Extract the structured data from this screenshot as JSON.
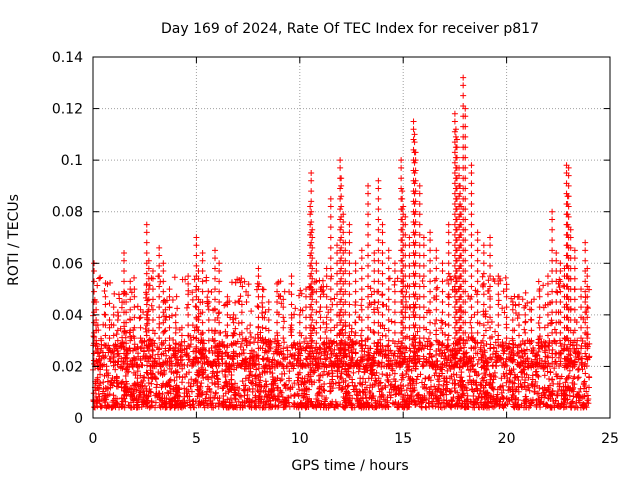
{
  "chart_data": {
    "type": "scatter",
    "title": "Day 169 of 2024, Rate Of TEC Index for receiver p817",
    "xlabel": "GPS time / hours",
    "ylabel": "ROTI / TECUs",
    "xlim": [
      0,
      25
    ],
    "ylim": [
      0,
      0.14
    ],
    "xticks": [
      0,
      5,
      10,
      15,
      20,
      25
    ],
    "xtick_labels": [
      "0",
      "5",
      "10",
      "15",
      "20",
      "25"
    ],
    "yticks": [
      0,
      0.02,
      0.04,
      0.06,
      0.08,
      0.1,
      0.12,
      0.14
    ],
    "ytick_labels": [
      "0",
      "0.02",
      "0.04",
      "0.06",
      "0.08",
      "0.1",
      "0.12",
      "0.14"
    ],
    "grid": true,
    "marker": "+",
    "color": "#ff0000",
    "series": [
      {
        "name": "ROTI",
        "x": [
          0.05,
          0.15,
          0.25,
          0.4,
          0.6,
          0.8,
          1.0,
          1.2,
          1.5,
          1.6,
          1.8,
          2.0,
          2.3,
          2.6,
          2.7,
          2.9,
          3.2,
          3.4,
          3.5,
          3.7,
          4.0,
          4.3,
          4.6,
          5.0,
          5.1,
          5.3,
          5.6,
          5.9,
          6.1,
          6.5,
          6.8,
          7.2,
          7.6,
          8.0,
          8.2,
          8.5,
          8.9,
          9.2,
          9.6,
          10.0,
          10.3,
          10.5,
          10.55,
          10.6,
          10.8,
          11.0,
          11.3,
          11.5,
          11.8,
          11.95,
          12.0,
          12.1,
          12.2,
          12.4,
          12.7,
          13.0,
          13.3,
          13.6,
          13.8,
          14.0,
          14.3,
          14.6,
          14.9,
          14.95,
          15.0,
          15.1,
          15.3,
          15.5,
          15.55,
          15.6,
          15.8,
          16.0,
          16.3,
          16.6,
          16.9,
          17.2,
          17.5,
          17.55,
          17.6,
          17.7,
          17.75,
          17.8,
          17.9,
          18.0,
          18.3,
          18.6,
          18.9,
          19.2,
          19.6,
          20.0,
          20.3,
          20.6,
          20.9,
          21.2,
          21.6,
          22.0,
          22.2,
          22.4,
          22.6,
          22.8,
          22.9,
          22.95,
          23.0,
          23.1,
          23.3,
          23.6,
          23.8,
          23.9
        ],
        "y": [
          0.06,
          0.045,
          0.025,
          0.03,
          0.047,
          0.038,
          0.043,
          0.041,
          0.064,
          0.048,
          0.053,
          0.05,
          0.042,
          0.075,
          0.061,
          0.057,
          0.066,
          0.06,
          0.045,
          0.05,
          0.04,
          0.035,
          0.055,
          0.07,
          0.057,
          0.064,
          0.045,
          0.065,
          0.06,
          0.047,
          0.04,
          0.044,
          0.036,
          0.058,
          0.05,
          0.045,
          0.052,
          0.046,
          0.055,
          0.04,
          0.05,
          0.082,
          0.095,
          0.073,
          0.06,
          0.05,
          0.058,
          0.085,
          0.067,
          0.1,
          0.093,
          0.079,
          0.068,
          0.075,
          0.06,
          0.065,
          0.09,
          0.064,
          0.092,
          0.075,
          0.065,
          0.06,
          0.1,
          0.088,
          0.082,
          0.078,
          0.07,
          0.115,
          0.11,
          0.103,
          0.09,
          0.07,
          0.072,
          0.065,
          0.06,
          0.075,
          0.118,
          0.112,
          0.108,
          0.097,
          0.09,
          0.082,
          0.132,
          0.12,
          0.098,
          0.072,
          0.067,
          0.07,
          0.055,
          0.05,
          0.045,
          0.047,
          0.04,
          0.045,
          0.05,
          0.055,
          0.08,
          0.064,
          0.06,
          0.058,
          0.098,
          0.086,
          0.097,
          0.073,
          0.065,
          0.05,
          0.068,
          0.058
        ]
      }
    ],
    "baseline_cloud": {
      "x_range": [
        0,
        24
      ],
      "typical_range": [
        0.004,
        0.03
      ],
      "note": "dense band of points around 0.01-0.02 TECU spanning the full day"
    }
  }
}
